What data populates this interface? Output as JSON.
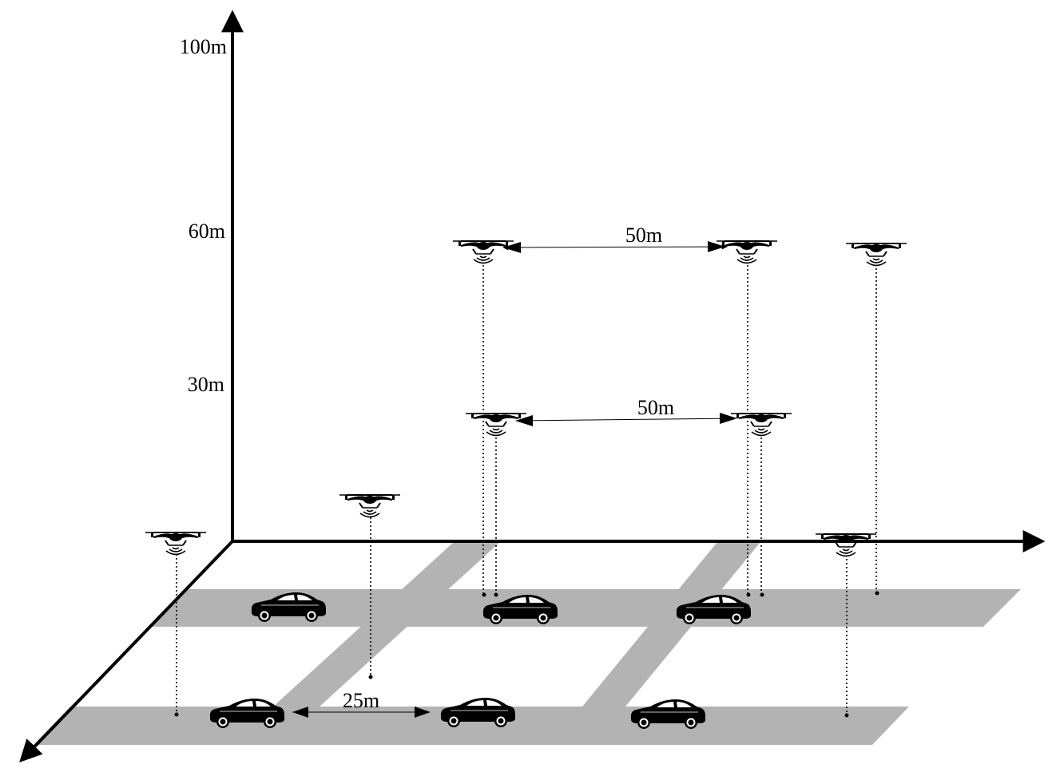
{
  "altitude_labels": {
    "label_100": "100m",
    "label_60": "60m",
    "label_30": "30m"
  },
  "distance_labels": {
    "upper_uav_spacing": "50m",
    "middle_uav_spacing": "50m",
    "vehicle_spacing": "25m"
  },
  "colors": {
    "road": "#b3b3b3",
    "ink": "#000000",
    "background": "#ffffff"
  },
  "icons": {
    "uav": "drone-icon",
    "vehicle": "car-icon",
    "signal": "wireless-signal-icon"
  }
}
